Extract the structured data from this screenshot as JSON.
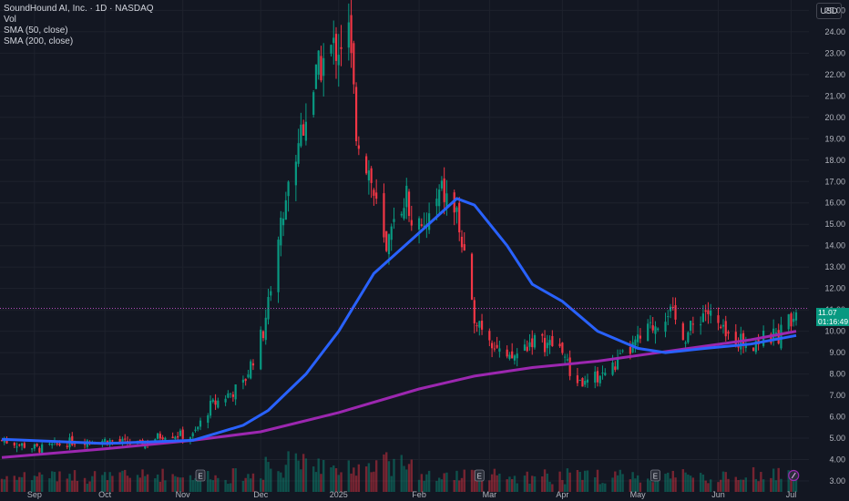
{
  "header": {
    "symbol_line": "SoundHound AI, Inc. · 1D · NASDAQ",
    "vol_label": "Vol",
    "sma50_label": "SMA (50, close)",
    "sma200_label": "SMA (200, close)",
    "currency": "USD"
  },
  "last_price": {
    "value": "11.07",
    "countdown": "01:16:49"
  },
  "colors": {
    "up": "#089981",
    "down": "#f23645",
    "sma50": "#2962ff",
    "sma200": "#9c27b0",
    "background": "#131722"
  },
  "chart_data": {
    "type": "candlestick",
    "y_ticks": [
      3,
      4,
      5,
      6,
      7,
      8,
      9,
      10,
      11,
      12,
      13,
      14,
      15,
      16,
      17,
      18,
      19,
      20,
      21,
      22,
      23,
      24,
      25
    ],
    "y_tick_labels": [
      "3.00",
      "4.00",
      "5.00",
      "6.00",
      "7.00",
      "8.00",
      "9.00",
      "10.00",
      "11.00",
      "12.00",
      "13.00",
      "14.00",
      "15.00",
      "16.00",
      "17.00",
      "18.00",
      "19.00",
      "20.00",
      "21.00",
      "22.00",
      "23.00",
      "24.00",
      "25.00"
    ],
    "ylim": [
      3,
      25.4
    ],
    "x_ticks": [
      {
        "label": "Sep",
        "date": "2024-09-03"
      },
      {
        "label": "Oct",
        "date": "2024-10-01"
      },
      {
        "label": "Nov",
        "date": "2024-11-01"
      },
      {
        "label": "Dec",
        "date": "2024-12-02"
      },
      {
        "label": "2025",
        "date": "2025-01-02"
      },
      {
        "label": "Feb",
        "date": "2025-02-03"
      },
      {
        "label": "Mar",
        "date": "2025-03-03"
      },
      {
        "label": "Apr",
        "date": "2025-04-01"
      },
      {
        "label": "May",
        "date": "2025-05-01"
      },
      {
        "label": "Jun",
        "date": "2025-06-02"
      },
      {
        "label": "Jul",
        "date": "2025-07-01"
      }
    ],
    "date_range": [
      "2024-08-21",
      "2025-07-03"
    ],
    "close_anchors": [
      [
        "2024-08-21",
        4.9
      ],
      [
        "2024-09-05",
        4.5
      ],
      [
        "2024-09-20",
        4.9
      ],
      [
        "2024-10-01",
        4.9
      ],
      [
        "2024-10-15",
        4.7
      ],
      [
        "2024-10-25",
        5.2
      ],
      [
        "2024-11-05",
        5.1
      ],
      [
        "2024-11-12",
        6.5
      ],
      [
        "2024-11-25",
        7.5
      ],
      [
        "2024-12-03",
        10.0
      ],
      [
        "2024-12-10",
        15.0
      ],
      [
        "2024-12-18",
        19.5
      ],
      [
        "2024-12-26",
        22.5
      ],
      [
        "2025-01-06",
        24.0
      ],
      [
        "2025-01-09",
        19.5
      ],
      [
        "2025-01-14",
        17.5
      ],
      [
        "2025-01-21",
        13.5
      ],
      [
        "2025-01-28",
        16.5
      ],
      [
        "2025-02-04",
        14.5
      ],
      [
        "2025-02-12",
        16.5
      ],
      [
        "2025-02-18",
        15.5
      ],
      [
        "2025-02-24",
        11.0
      ],
      [
        "2025-03-03",
        9.8
      ],
      [
        "2025-03-10",
        8.5
      ],
      [
        "2025-03-20",
        9.6
      ],
      [
        "2025-04-01",
        9.2
      ],
      [
        "2025-04-04",
        8.0
      ],
      [
        "2025-04-10",
        7.5
      ],
      [
        "2025-04-21",
        8.3
      ],
      [
        "2025-05-01",
        9.5
      ],
      [
        "2025-05-13",
        11.0
      ],
      [
        "2025-05-20",
        9.8
      ],
      [
        "2025-05-28",
        11.0
      ],
      [
        "2025-06-05",
        9.7
      ],
      [
        "2025-06-16",
        9.5
      ],
      [
        "2025-06-26",
        9.8
      ],
      [
        "2025-07-03",
        11.07
      ]
    ],
    "sma50_points": [
      [
        "2024-08-21",
        4.95
      ],
      [
        "2024-10-01",
        4.75
      ],
      [
        "2024-11-05",
        4.9
      ],
      [
        "2024-11-25",
        5.6
      ],
      [
        "2024-12-05",
        6.3
      ],
      [
        "2024-12-20",
        8.0
      ],
      [
        "2025-01-02",
        10.0
      ],
      [
        "2025-01-16",
        12.7
      ],
      [
        "2025-02-03",
        14.6
      ],
      [
        "2025-02-18",
        16.2
      ],
      [
        "2025-02-25",
        15.9
      ],
      [
        "2025-03-10",
        14.0
      ],
      [
        "2025-03-20",
        12.2
      ],
      [
        "2025-04-01",
        11.4
      ],
      [
        "2025-04-15",
        10.0
      ],
      [
        "2025-05-01",
        9.2
      ],
      [
        "2025-05-12",
        9.0
      ],
      [
        "2025-05-28",
        9.2
      ],
      [
        "2025-06-15",
        9.4
      ],
      [
        "2025-07-03",
        9.8
      ]
    ],
    "sma200_points": [
      [
        "2024-08-21",
        4.1
      ],
      [
        "2024-10-01",
        4.5
      ],
      [
        "2024-11-05",
        4.9
      ],
      [
        "2024-12-02",
        5.3
      ],
      [
        "2025-01-02",
        6.2
      ],
      [
        "2025-02-03",
        7.3
      ],
      [
        "2025-02-25",
        7.9
      ],
      [
        "2025-03-20",
        8.3
      ],
      [
        "2025-04-15",
        8.6
      ],
      [
        "2025-05-15",
        9.1
      ],
      [
        "2025-06-15",
        9.6
      ],
      [
        "2025-07-03",
        10.0
      ]
    ],
    "earnings_markers": [
      {
        "label": "E",
        "date": "2024-11-08"
      },
      {
        "label": "E",
        "date": "2025-02-27"
      },
      {
        "label": "E",
        "date": "2025-05-08"
      }
    ],
    "events_icon_date": "2025-07-02"
  }
}
